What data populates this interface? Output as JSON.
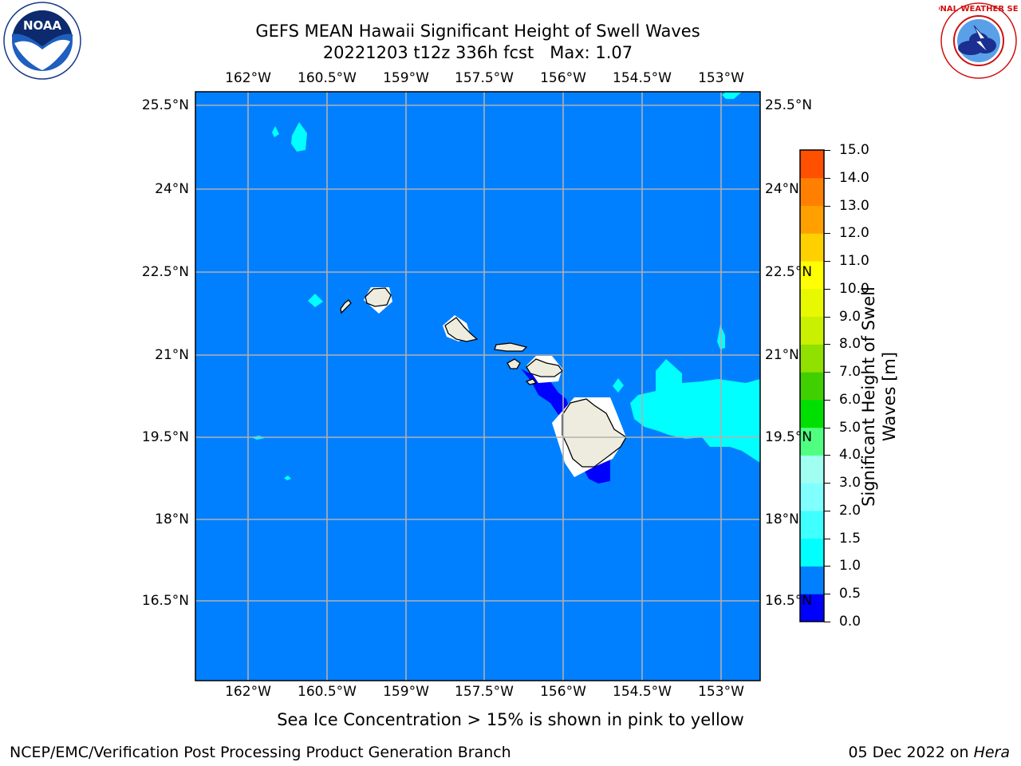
{
  "title_line1": "GEFS MEAN Hawaii Significant Height of Swell Waves",
  "title_line2": "20221203 t12z 336h fcst   Max: 1.07",
  "map": {
    "lon_ticks": [
      "162°W",
      "160.5°W",
      "159°W",
      "157.5°W",
      "156°W",
      "154.5°W",
      "153°W"
    ],
    "lat_ticks": [
      "25.5°N",
      "24°N",
      "22.5°N",
      "21°N",
      "19.5°N",
      "18°N",
      "16.5°N"
    ],
    "background_color": "#0080ff",
    "land_color": "#eeecdf",
    "grid_color": "#b0b0b0"
  },
  "colorbar": {
    "label": "Significant Height of Swell Waves [m]",
    "ticks": [
      "0.0",
      "0.5",
      "1.0",
      "1.5",
      "2.0",
      "3.0",
      "4.0",
      "5.0",
      "6.0",
      "7.0",
      "8.0",
      "9.0",
      "10.0",
      "11.0",
      "12.0",
      "13.0",
      "14.0",
      "15.0"
    ],
    "colors": [
      "#0000ff",
      "#0080ff",
      "#00ffff",
      "#40ffff",
      "#80ffff",
      "#a0fff0",
      "#50ff80",
      "#00e000",
      "#40d000",
      "#90e000",
      "#c8f000",
      "#e8f800",
      "#ffff00",
      "#ffd000",
      "#ffa000",
      "#ff8000",
      "#ff5000",
      "#ff2000",
      "#ff0000"
    ]
  },
  "note": "Sea Ice Concentration > 15% is shown in pink to yellow",
  "footer_left": "NCEP/EMC/Verification Post Processing Product Generation Branch",
  "footer_right_date": "05 Dec 2022 on ",
  "footer_right_host": "Hera",
  "logos": {
    "noaa_text": "NOAA",
    "noaa_ring": "NATIONAL OCEANIC AND ATMOSPHERIC ADMINISTRATION · U.S. DEPARTMENT OF COMMERCE",
    "nws_ring": "NATIONAL WEATHER SERVICE"
  }
}
